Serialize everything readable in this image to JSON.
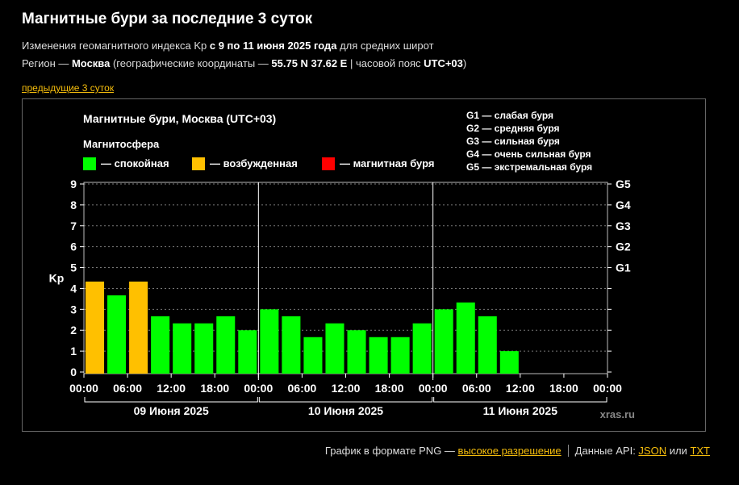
{
  "header": {
    "title": "Магнитные бури за последние 3 суток",
    "line1": {
      "prefix": "Изменения геомагнитного индекса Kp ",
      "range": "с 9 по 11 июня 2025 года",
      "suffix": " для средних широт"
    },
    "line2": {
      "prefix": "Регион — ",
      "city": "Москва",
      "mid": " (географические координаты — ",
      "coords": "55.75 N 37.62 E",
      "tz_prefix": " | часовой пояс ",
      "tz": "UTC+03",
      "end": ")"
    },
    "prev_link": "предыдущие 3 суток"
  },
  "chart_data": {
    "type": "bar",
    "title": "Магнитные бури, Москва (UTC+03)",
    "legend_title": "Магнитосфера",
    "legend": [
      {
        "label": "— спокойная",
        "color": "#00ff00"
      },
      {
        "label": "— возбужденная",
        "color": "#ffc000"
      },
      {
        "label": "— магнитная буря",
        "color": "#ff0000"
      }
    ],
    "g_scale": [
      "G1 — слабая буря",
      "G2 — средняя буря",
      "G3 — сильная буря",
      "G4 — очень сильная буря",
      "G5 — экстремальная буря"
    ],
    "ylabel": "Kp",
    "ylim": [
      0,
      9
    ],
    "yticks": [
      "0",
      "1",
      "2",
      "3",
      "4",
      "5",
      "6",
      "7",
      "8",
      "9"
    ],
    "right_labels": [
      {
        "kp": 5,
        "label": "G1"
      },
      {
        "kp": 6,
        "label": "G2"
      },
      {
        "kp": 7,
        "label": "G3"
      },
      {
        "kp": 8,
        "label": "G4"
      },
      {
        "kp": 9,
        "label": "G5"
      }
    ],
    "xticks": [
      "00:00",
      "06:00",
      "12:00",
      "18:00",
      "00:00",
      "06:00",
      "12:00",
      "18:00",
      "00:00",
      "06:00",
      "12:00",
      "18:00",
      "00:00"
    ],
    "days": [
      "09 Июня 2025",
      "10 Июня 2025",
      "11 Июня 2025"
    ],
    "values": [
      4.33,
      3.67,
      4.33,
      2.67,
      2.33,
      2.33,
      2.67,
      2.0,
      3.0,
      2.67,
      1.67,
      2.33,
      2.0,
      1.67,
      1.67,
      2.33,
      3.0,
      3.33,
      2.67,
      1.0
    ],
    "status": [
      "excited",
      "quiet",
      "excited",
      "quiet",
      "quiet",
      "quiet",
      "quiet",
      "quiet",
      "quiet",
      "quiet",
      "quiet",
      "quiet",
      "quiet",
      "quiet",
      "quiet",
      "quiet",
      "quiet",
      "quiet",
      "quiet",
      "quiet"
    ],
    "status_colors": {
      "quiet": "#00ff00",
      "excited": "#ffc000",
      "storm": "#ff0000"
    },
    "watermark": "xras.ru",
    "grid": true
  },
  "footer": {
    "png_text": "График в формате PNG — ",
    "png_link": "высокое разрешение",
    "api_text": "Данные API: ",
    "json_link": "JSON",
    "or_text": " или ",
    "txt_link": "TXT"
  }
}
